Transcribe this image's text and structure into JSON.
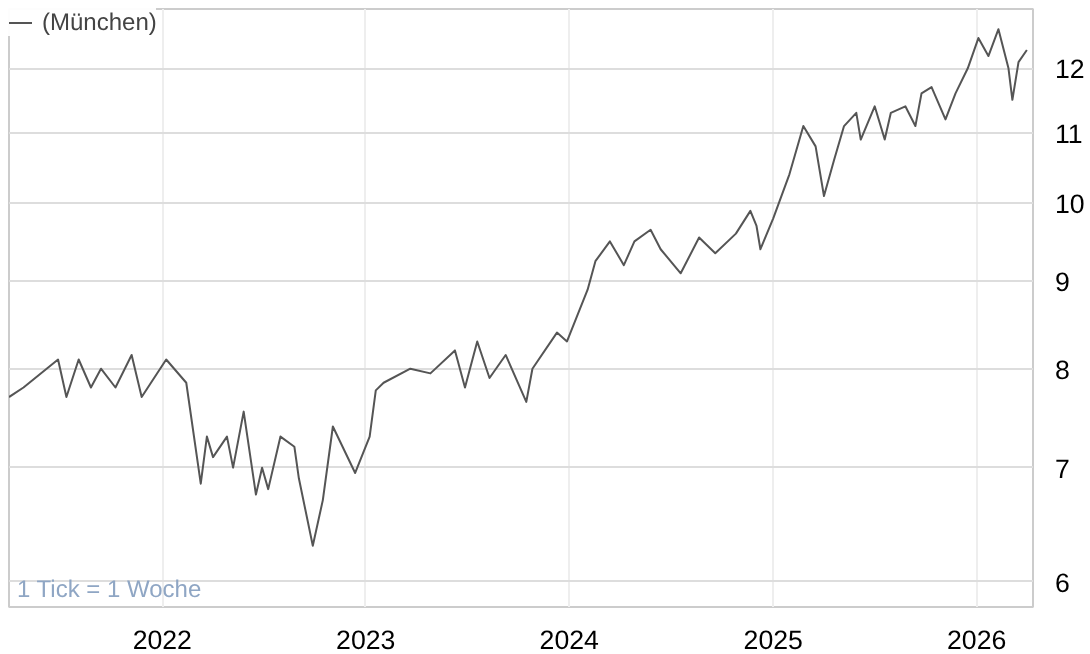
{
  "chart_data": {
    "type": "line",
    "legend": "top left",
    "grid": true,
    "log": "y",
    "xlim": [
      "2021-04-01",
      "2026-04-12"
    ],
    "ylim": [
      5.8,
      13
    ],
    "xticks": [
      {
        "value": "2022-01-01",
        "label": "2022"
      },
      {
        "value": "2023-01-01",
        "label": "2023"
      },
      {
        "value": "2024-01-01",
        "label": "2024"
      },
      {
        "value": "2025-01-01",
        "label": "2025"
      },
      {
        "value": "2026-01-01",
        "label": "2026"
      }
    ],
    "yticks": [
      6,
      7,
      8,
      9,
      10,
      11,
      12
    ],
    "annotations": [
      "1 Tick = 1 Woche"
    ],
    "x": [
      "2021-04-01",
      "2021-04-27",
      "2021-06-28",
      "2021-07-13",
      "2021-08-04",
      "2021-08-26",
      "2021-09-13",
      "2021-10-09",
      "2021-11-07",
      "2021-11-25",
      "2022-01-08",
      "2022-02-13",
      "2022-03-11",
      "2022-03-22",
      "2022-04-02",
      "2022-04-27",
      "2022-05-08",
      "2022-05-27",
      "2022-06-18",
      "2022-06-29",
      "2022-07-10",
      "2022-08-01",
      "2022-08-26",
      "2022-09-03",
      "2022-09-28",
      "2022-10-16",
      "2022-11-03",
      "2022-12-13",
      "2023-01-08",
      "2023-01-19",
      "2023-02-02",
      "2023-03-22",
      "2023-04-27",
      "2023-06-10",
      "2023-06-28",
      "2023-07-20",
      "2023-08-11",
      "2023-09-09",
      "2023-10-16",
      "2023-10-27",
      "2023-12-10",
      "2023-12-28",
      "2024-02-03",
      "2024-02-17",
      "2024-03-14",
      "2024-04-08",
      "2024-04-27",
      "2024-05-26",
      "2024-06-13",
      "2024-07-19",
      "2024-08-21",
      "2024-09-19",
      "2024-10-26",
      "2024-11-21",
      "2024-12-02",
      "2024-12-09",
      "2025-01-01",
      "2025-01-30",
      "2025-02-24",
      "2025-03-18",
      "2025-04-02",
      "2025-04-20",
      "2025-05-08",
      "2025-05-30",
      "2025-06-07",
      "2025-07-02",
      "2025-07-20",
      "2025-07-31",
      "2025-08-26",
      "2025-09-13",
      "2025-09-24",
      "2025-10-12",
      "2025-11-06",
      "2025-11-24",
      "2025-12-16",
      "2026-01-04",
      "2026-01-22",
      "2026-02-09",
      "2026-02-27",
      "2026-03-06",
      "2026-03-17",
      "2026-04-01"
    ],
    "series": [
      {
        "name": "(München)",
        "color": "#555555",
        "values": [
          7.7,
          7.8,
          8.1,
          7.7,
          8.1,
          7.8,
          8.0,
          7.8,
          8.15,
          7.7,
          8.1,
          7.85,
          6.85,
          7.3,
          7.1,
          7.3,
          7.0,
          7.55,
          6.75,
          7.0,
          6.8,
          7.3,
          7.2,
          6.9,
          6.3,
          6.7,
          7.4,
          6.95,
          7.3,
          7.77,
          7.85,
          8.0,
          7.95,
          8.2,
          7.8,
          8.3,
          7.9,
          8.15,
          7.65,
          8.0,
          8.4,
          8.3,
          8.9,
          9.25,
          9.5,
          9.2,
          9.5,
          9.65,
          9.4,
          9.1,
          9.55,
          9.35,
          9.6,
          9.9,
          9.7,
          9.4,
          9.8,
          10.4,
          11.1,
          10.8,
          10.1,
          10.6,
          11.1,
          11.3,
          10.9,
          11.4,
          10.9,
          11.3,
          11.4,
          11.1,
          11.6,
          11.7,
          11.2,
          11.6,
          12.0,
          12.5,
          12.2,
          12.65,
          12.0,
          11.5,
          12.1,
          12.3
        ]
      }
    ]
  }
}
